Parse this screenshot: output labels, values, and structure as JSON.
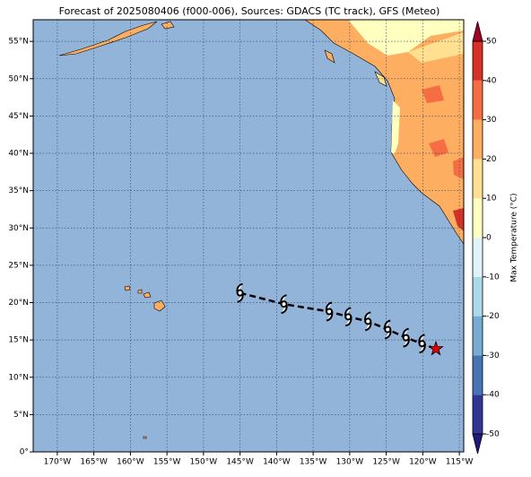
{
  "map": {
    "title": "Forecast of 2025080406 (f000-006), Sources: GDACS (TC track), GFS (Meteo)",
    "xlim": [
      -173.3,
      -114.4
    ],
    "ylim": [
      0,
      57.9
    ],
    "xticks": [
      {
        "value": -170,
        "label": "170°W"
      },
      {
        "value": -165,
        "label": "165°W"
      },
      {
        "value": -160,
        "label": "160°W"
      },
      {
        "value": -155,
        "label": "155°W"
      },
      {
        "value": -150,
        "label": "150°W"
      },
      {
        "value": -145,
        "label": "145°W"
      },
      {
        "value": -140,
        "label": "140°W"
      },
      {
        "value": -135,
        "label": "135°W"
      },
      {
        "value": -130,
        "label": "130°W"
      },
      {
        "value": -125,
        "label": "125°W"
      },
      {
        "value": -120,
        "label": "120°W"
      },
      {
        "value": -115,
        "label": "115°W"
      }
    ],
    "yticks": [
      {
        "value": 0,
        "label": "0°"
      },
      {
        "value": 5,
        "label": "5°N"
      },
      {
        "value": 10,
        "label": "10°N"
      },
      {
        "value": 15,
        "label": "15°N"
      },
      {
        "value": 20,
        "label": "20°N"
      },
      {
        "value": 25,
        "label": "25°N"
      },
      {
        "value": 30,
        "label": "30°N"
      },
      {
        "value": 35,
        "label": "35°N"
      },
      {
        "value": 40,
        "label": "40°N"
      },
      {
        "value": 45,
        "label": "45°N"
      },
      {
        "value": 50,
        "label": "50°N"
      },
      {
        "value": 55,
        "label": "55°N"
      }
    ],
    "grid": true,
    "ocean_color": "#92b4d9",
    "track": {
      "lon": [
        -145,
        -139,
        -132.8,
        -130.2,
        -127.5,
        -124.8,
        -122.3,
        -120.1,
        -118.2
      ],
      "lat": [
        21.3,
        19.8,
        18.8,
        18.1,
        17.5,
        16.4,
        15.3,
        14.5,
        13.8
      ],
      "color": "#000000",
      "current_color": "#e00000"
    },
    "colorbar": {
      "label": "Max Temperature (°C)",
      "lim": [
        -50,
        50
      ],
      "ticks": [
        -50,
        -40,
        -30,
        -20,
        -10,
        0,
        10,
        20,
        30,
        40,
        50
      ],
      "colors": [
        "#313695",
        "#4575b4",
        "#74add1",
        "#abd9e9",
        "#e0f3f8",
        "#ffffbf",
        "#fee090",
        "#fdae61",
        "#f46d43",
        "#d73027"
      ],
      "under_color": "#1f1b7a",
      "over_color": "#a50026"
    }
  }
}
